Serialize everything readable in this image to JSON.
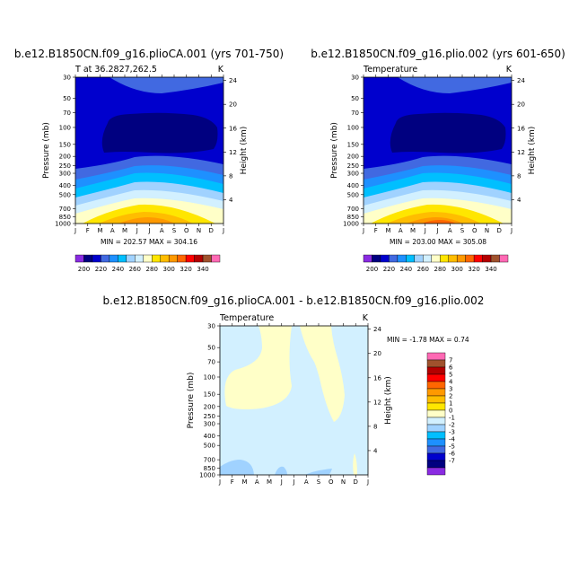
{
  "chart_data": [
    {
      "type": "contour",
      "title": "b.e12.B1850CN.f09_g16.plioCA.001 (yrs 701-750)",
      "subtitle_left": "T at 36.2827,262.5",
      "subtitle_right": "K",
      "xlabel": "",
      "ylabel": "Pressure (mb)",
      "ylabel_right": "Height (km)",
      "x_ticks": [
        "J",
        "F",
        "M",
        "A",
        "M",
        "J",
        "J",
        "A",
        "S",
        "O",
        "N",
        "D",
        "J"
      ],
      "y_ticks": [
        "30",
        "50",
        "70",
        "100",
        "150",
        "200",
        "250",
        "300",
        "400",
        "500",
        "700",
        "850",
        "1000"
      ],
      "y_ticks_right": [
        "24",
        "20",
        "16",
        "12",
        "8",
        "4"
      ],
      "ylim_mb": [
        1000,
        30
      ],
      "yscale": "log",
      "min_max_text": "MIN = 202.57  MAX = 304.16",
      "min": 202.57,
      "max": 304.16,
      "colorbar_labels": [
        "200",
        "220",
        "240",
        "260",
        "280",
        "300",
        "320",
        "340"
      ]
    },
    {
      "type": "contour",
      "title": "b.e12.B1850CN.f09_g16.plio.002 (yrs 601-650)",
      "subtitle_left": "Temperature",
      "subtitle_right": "K",
      "xlabel": "",
      "ylabel": "Pressure (mb)",
      "ylabel_right": "Height (km)",
      "x_ticks": [
        "J",
        "F",
        "M",
        "A",
        "M",
        "J",
        "J",
        "A",
        "S",
        "O",
        "N",
        "D",
        "J"
      ],
      "y_ticks": [
        "30",
        "50",
        "70",
        "100",
        "150",
        "200",
        "250",
        "300",
        "400",
        "500",
        "700",
        "850",
        "1000"
      ],
      "y_ticks_right": [
        "24",
        "20",
        "16",
        "12",
        "8",
        "4"
      ],
      "ylim_mb": [
        1000,
        30
      ],
      "yscale": "log",
      "min_max_text": "MIN = 203.00  MAX = 305.08",
      "min": 203.0,
      "max": 305.08,
      "colorbar_labels": [
        "200",
        "220",
        "240",
        "260",
        "280",
        "300",
        "320",
        "340"
      ]
    },
    {
      "type": "contour",
      "title": "b.e12.B1850CN.f09_g16.plioCA.001 - b.e12.B1850CN.f09_g16.plio.002",
      "subtitle_left": "Temperature",
      "subtitle_right": "K",
      "xlabel": "",
      "ylabel": "Pressure (mb)",
      "ylabel_right": "Height (km)",
      "x_ticks": [
        "J",
        "F",
        "M",
        "A",
        "M",
        "J",
        "J",
        "A",
        "S",
        "O",
        "N",
        "D",
        "J"
      ],
      "y_ticks": [
        "30",
        "50",
        "70",
        "100",
        "150",
        "200",
        "250",
        "300",
        "400",
        "500",
        "700",
        "850",
        "1000"
      ],
      "y_ticks_right": [
        "24",
        "20",
        "16",
        "12",
        "8",
        "4"
      ],
      "ylim_mb": [
        1000,
        30
      ],
      "yscale": "log",
      "min_max_text": "MIN = -1.78  MAX = 0.74",
      "min": -1.78,
      "max": 0.74,
      "colorbar_labels": [
        "7",
        "6",
        "5",
        "4",
        "3",
        "2",
        "1",
        "0",
        "-1",
        "-2",
        "-3",
        "-4",
        "-5",
        "-6",
        "-7"
      ]
    }
  ],
  "colors": {
    "abs_scale": [
      "#8a2be2",
      "#000080",
      "#0000cd",
      "#4169e1",
      "#1e90ff",
      "#00bfff",
      "#a0d2ff",
      "#d2f0ff",
      "#ffffc8",
      "#ffe600",
      "#ffbd00",
      "#ff9900",
      "#ff6600",
      "#ff0000",
      "#b40000",
      "#a0522d",
      "#ff69b4"
    ],
    "diff_scale": [
      "#ff69b4",
      "#a0522d",
      "#b40000",
      "#ff0000",
      "#ff6600",
      "#ff9900",
      "#ffbd00",
      "#ffe600",
      "#ffffc8",
      "#d2f0ff",
      "#a0d2ff",
      "#00bfff",
      "#1e90ff",
      "#4169e1",
      "#0000cd",
      "#000080",
      "#8a2be2"
    ]
  }
}
